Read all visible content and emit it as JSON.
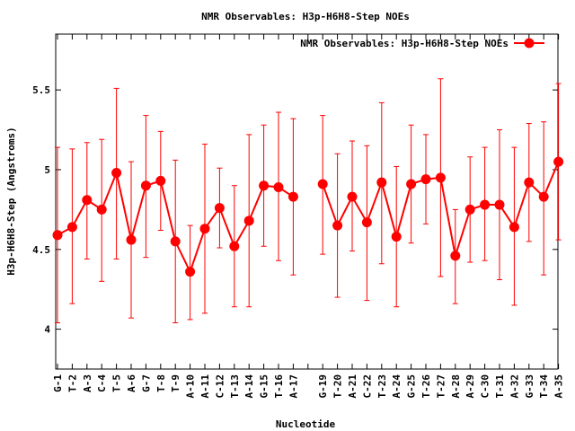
{
  "chart_data": {
    "type": "line",
    "title": "NMR Observables: H3p-H6H8-Step NOEs",
    "xlabel": "Nucleotide",
    "ylabel": "H3p-H6H8-Step (Angstroms)",
    "ylim": [
      3.75,
      5.85
    ],
    "yticks": [
      4,
      4.5,
      5,
      5.5
    ],
    "ytick_labels": [
      "4",
      "4.5",
      "5",
      "5.5"
    ],
    "grid": false,
    "legend_position": "top-right",
    "categories": [
      "G-1",
      "T-2",
      "A-3",
      "C-4",
      "T-5",
      "A-6",
      "G-7",
      "T-8",
      "T-9",
      "A-10",
      "A-11",
      "C-12",
      "T-13",
      "A-14",
      "G-15",
      "T-16",
      "A-17",
      "",
      "G-19",
      "T-20",
      "A-21",
      "C-22",
      "T-23",
      "A-24",
      "G-25",
      "T-26",
      "T-27",
      "A-28",
      "A-29",
      "C-30",
      "T-31",
      "A-32",
      "G-33",
      "T-34",
      "A-35"
    ],
    "series": [
      {
        "name": "NMR Observables: H3p-H6H8-Step NOEs",
        "color": "#ff0000",
        "values": [
          4.59,
          4.64,
          4.81,
          4.75,
          4.98,
          4.56,
          4.9,
          4.93,
          4.55,
          4.36,
          4.63,
          4.76,
          4.52,
          4.68,
          4.9,
          4.89,
          4.83,
          null,
          4.91,
          4.65,
          4.83,
          4.67,
          4.92,
          4.58,
          4.91,
          4.94,
          4.95,
          4.46,
          4.75,
          4.78,
          4.78,
          4.64,
          4.92,
          4.83,
          5.05
        ],
        "err_low": [
          4.04,
          4.16,
          4.44,
          4.3,
          4.44,
          4.07,
          4.45,
          4.62,
          4.04,
          4.06,
          4.1,
          4.51,
          4.14,
          4.14,
          4.52,
          4.43,
          4.34,
          null,
          4.47,
          4.2,
          4.49,
          4.18,
          4.41,
          4.14,
          4.54,
          4.66,
          4.33,
          4.16,
          4.42,
          4.43,
          4.31,
          4.15,
          4.55,
          4.34,
          4.56
        ],
        "err_high": [
          5.14,
          5.13,
          5.17,
          5.19,
          5.51,
          5.05,
          5.34,
          5.24,
          5.06,
          4.65,
          5.16,
          5.01,
          4.9,
          5.22,
          5.28,
          5.36,
          5.32,
          null,
          5.34,
          5.1,
          5.18,
          5.15,
          5.42,
          5.02,
          5.28,
          5.22,
          5.57,
          4.75,
          5.08,
          5.14,
          5.25,
          5.14,
          5.29,
          5.3,
          5.54
        ]
      }
    ]
  }
}
